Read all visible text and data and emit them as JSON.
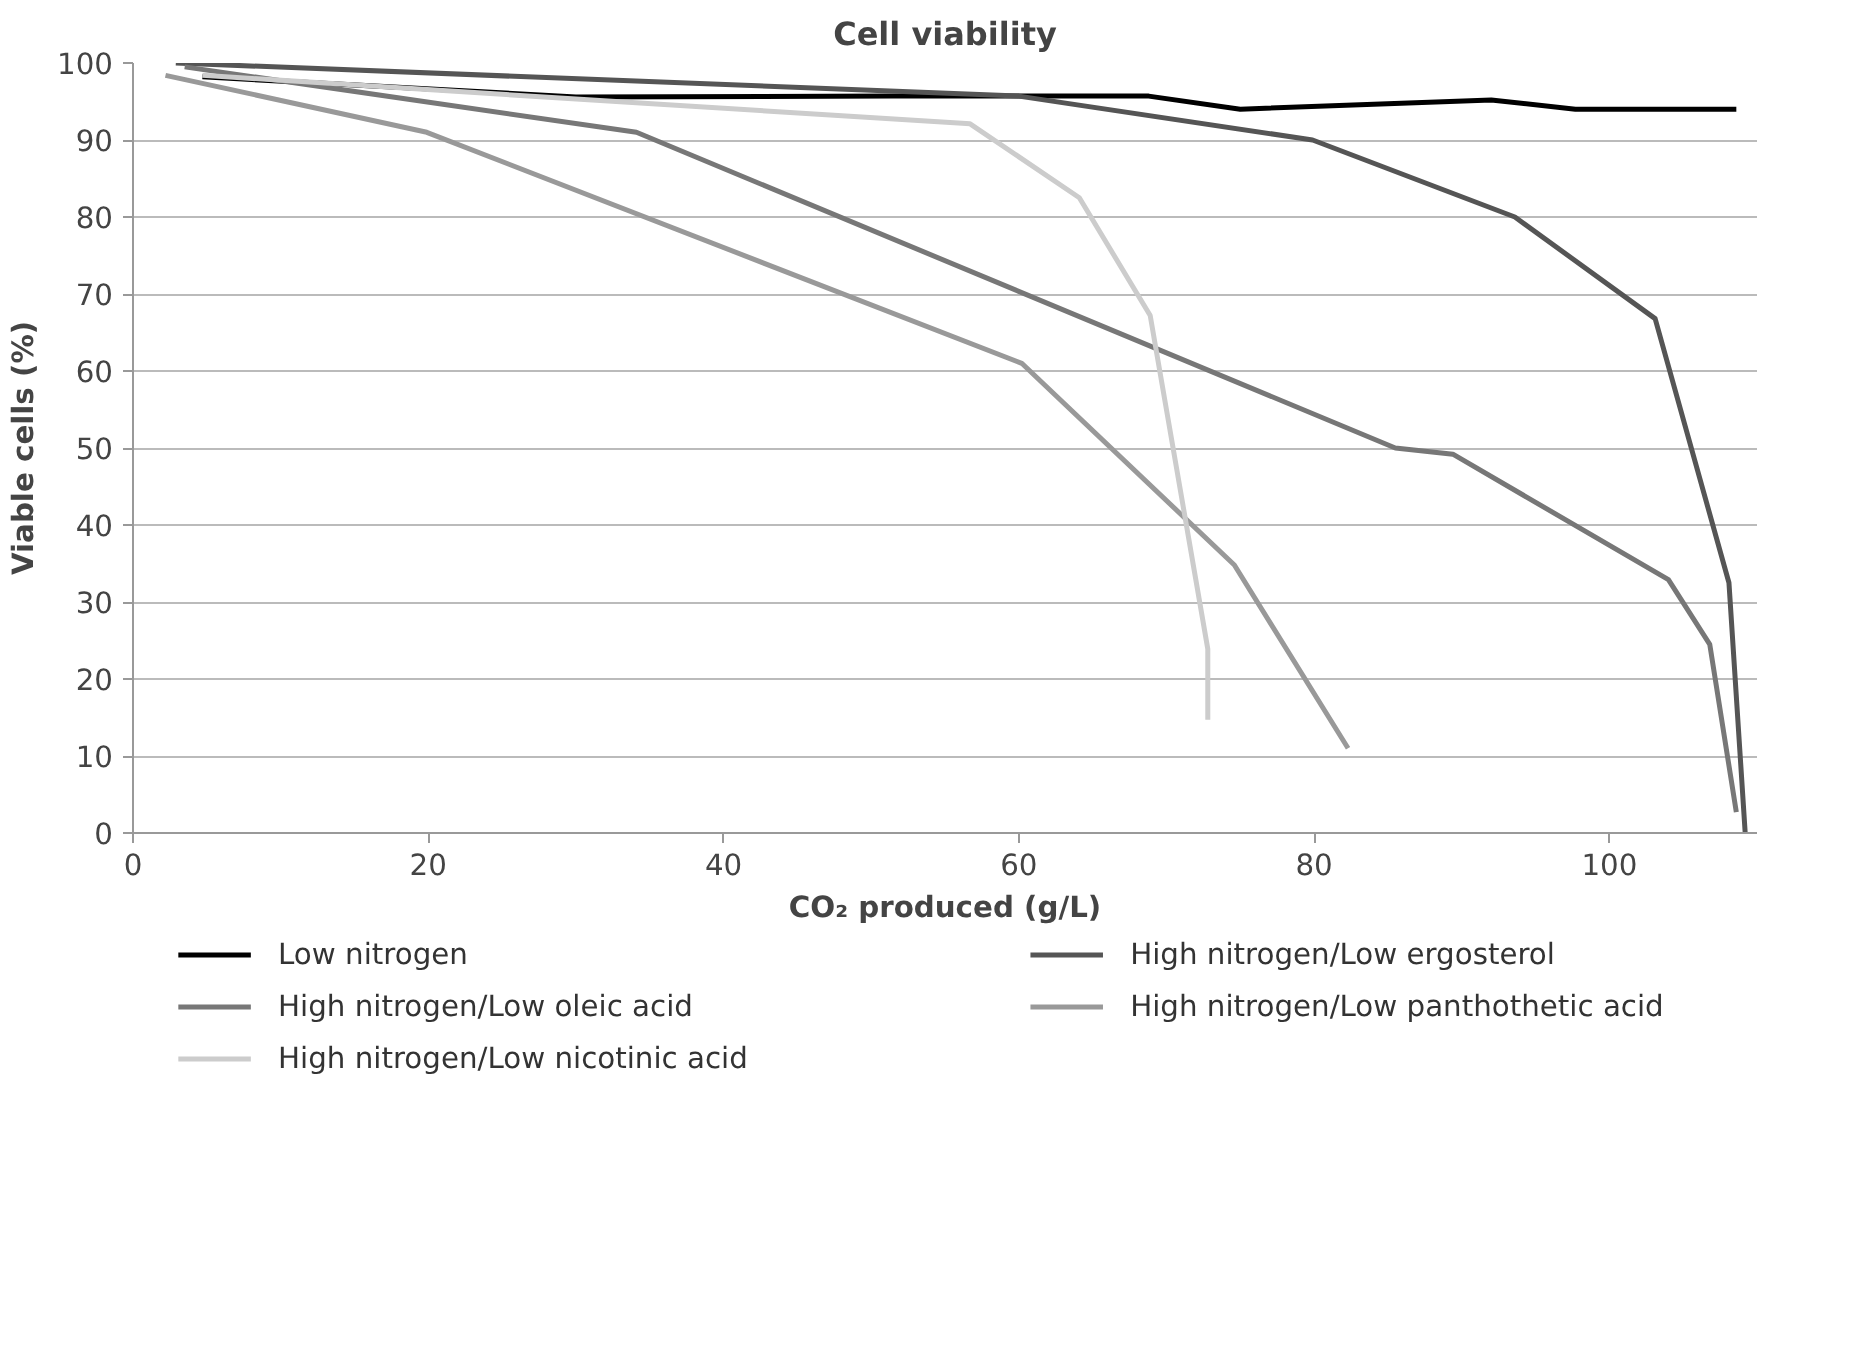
{
  "chart_data": {
    "type": "line",
    "title": "Cell viability",
    "xlabel": "CO₂ produced (g/L)",
    "ylabel": "Viable cells (%)",
    "xlim": [
      0,
      110
    ],
    "xticks": [
      0,
      20,
      40,
      60,
      80,
      100
    ],
    "ylim": [
      0,
      100
    ],
    "yticks": [
      0,
      10,
      20,
      30,
      40,
      50,
      60,
      70,
      80,
      90,
      100
    ],
    "grid": "y",
    "legend": "bottom",
    "marker": "none",
    "line_style": "solid",
    "series": [
      {
        "name": "Low nitrogen",
        "color": "#000000",
        "x": [
          4.7,
          30,
          51.5,
          68.8,
          75,
          92,
          97.7,
          108.6
        ],
        "values": [
          98.2,
          95.6,
          95.7,
          95.7,
          94,
          95.2,
          94,
          94
        ]
      },
      {
        "name": "High nitrogen/Low ergosterol",
        "color": "#555555",
        "x": [
          2.9,
          60,
          79.9,
          93.6,
          103.1,
          108.1,
          109.2
        ],
        "values": [
          100,
          95.7,
          90,
          80,
          66.8,
          32.5,
          0
        ]
      },
      {
        "name": "High nitrogen/Low oleic acid",
        "color": "#777777",
        "x": [
          3.5,
          34.1,
          85.5,
          89.4,
          104,
          106.8,
          108.6
        ],
        "values": [
          99.5,
          91,
          50,
          49.2,
          32.9,
          24.5,
          2.7
        ]
      },
      {
        "name": "High nitrogen/Low panthothetic acid",
        "color": "#999999",
        "x": [
          2.2,
          19.9,
          60.2,
          74.6,
          82.3
        ],
        "values": [
          98.4,
          91,
          61,
          34.8,
          11
        ]
      },
      {
        "name": "High nitrogen/Low nicotinic acid",
        "color": "#cccccc",
        "x": [
          4.7,
          56.7,
          64.1,
          68.9,
          72.8,
          72.8
        ],
        "values": [
          98.4,
          92.1,
          82.5,
          67.2,
          23.9,
          14.7
        ]
      }
    ]
  }
}
